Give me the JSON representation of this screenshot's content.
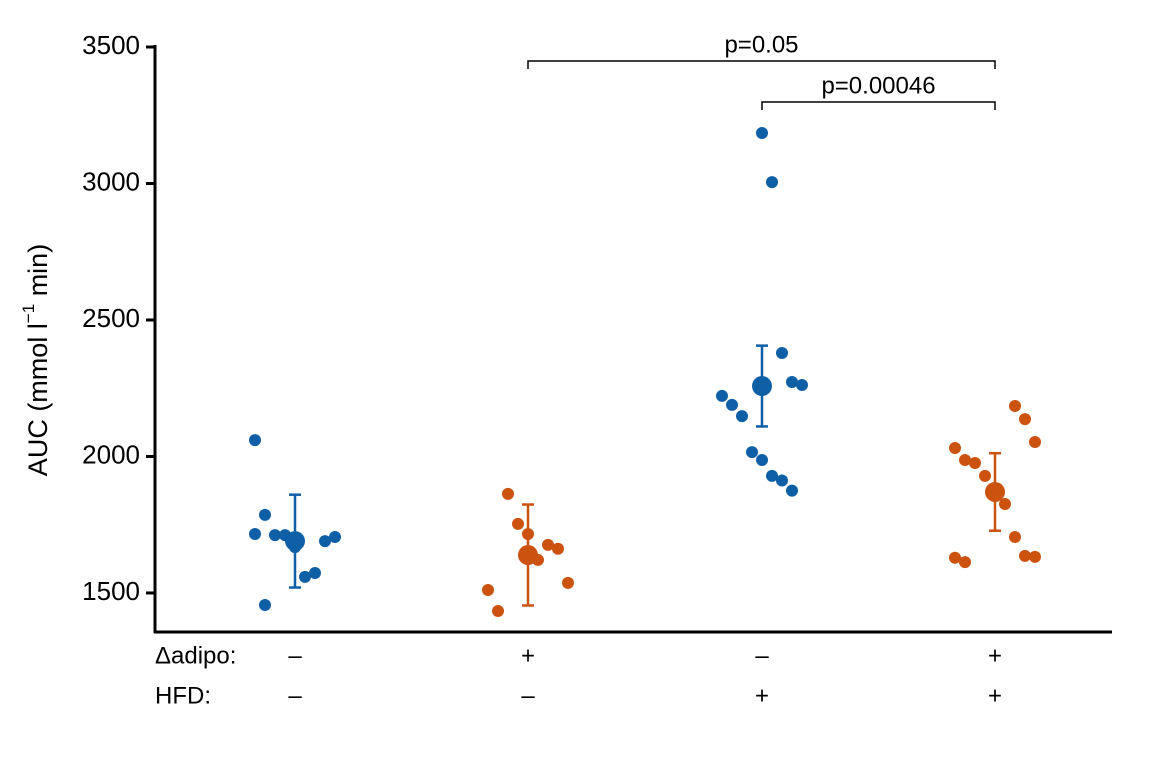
{
  "chart_data": {
    "type": "strip",
    "ylabel": {
      "text": "AUC (mmol l",
      "sup": "−1",
      "tail": " min)"
    },
    "ylim": [
      1357,
      3500
    ],
    "yticks": [
      1500,
      2000,
      2500,
      3000,
      3500
    ],
    "rows": [
      {
        "label": "Δadipo:",
        "values": [
          "–",
          "+",
          "–",
          "+"
        ]
      },
      {
        "label": "HFD:",
        "values": [
          "–",
          "–",
          "+",
          "+"
        ]
      }
    ],
    "series": [
      {
        "color": "#0f5fa6",
        "values": [
          2060,
          1786,
          1712,
          1712,
          1668,
          1559,
          1573,
          1690,
          1705,
          1716,
          1456
        ],
        "mean": 1690,
        "error": 170
      },
      {
        "color": "#cc5210",
        "values": [
          1863,
          1753,
          1716,
          1621,
          1676,
          1662,
          1537,
          1511,
          1434
        ],
        "mean": 1639,
        "error": 185
      },
      {
        "color": "#0f5fa6",
        "values": [
          3185,
          3005,
          2379,
          2273,
          2262,
          2222,
          2189,
          2148,
          2016,
          1987,
          1929,
          1912,
          1875
        ],
        "mean": 2258,
        "error": 148
      },
      {
        "color": "#cc5210",
        "values": [
          2185,
          2137,
          2053,
          2031,
          1987,
          1976,
          1929,
          1881,
          1826,
          1705,
          1636,
          1632,
          1629,
          1613
        ],
        "mean": 1870,
        "error": 142
      }
    ],
    "brackets": [
      {
        "label": "p=0.05",
        "groups": [
          1,
          3
        ]
      },
      {
        "label": "p=0.00046",
        "groups": [
          2,
          3
        ]
      }
    ]
  }
}
